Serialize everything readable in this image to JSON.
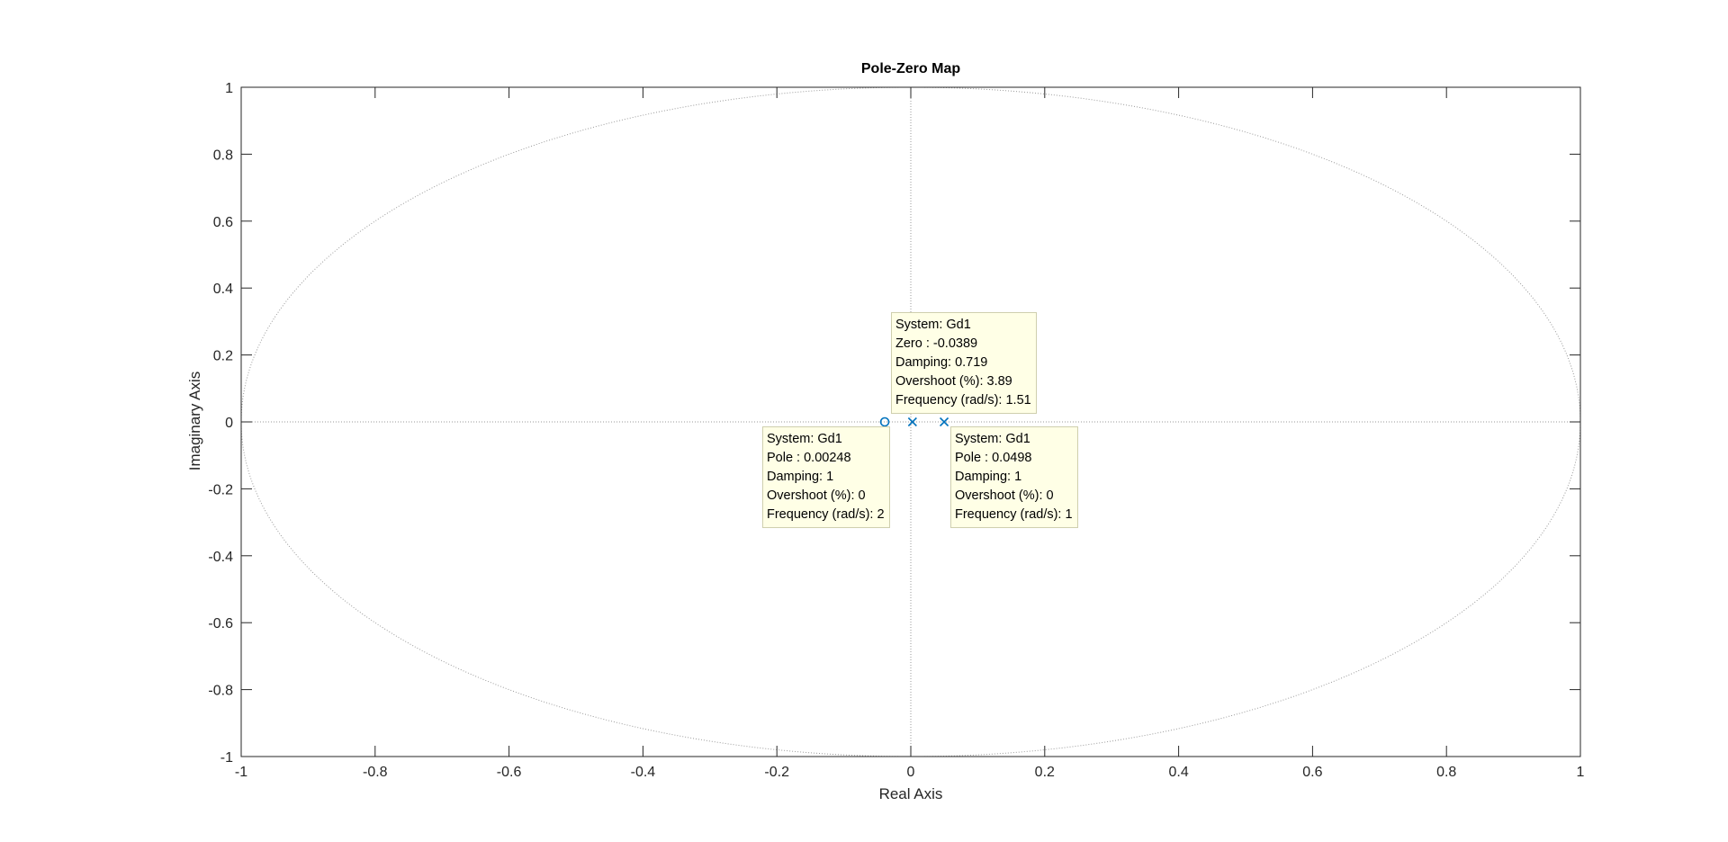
{
  "chart_data": {
    "type": "scatter",
    "title": "Pole-Zero Map",
    "xlabel": "Real Axis",
    "ylabel": "Imaginary Axis",
    "xlim": [
      -1,
      1
    ],
    "ylim": [
      -1,
      1
    ],
    "xticks": [
      -1,
      -0.8,
      -0.6,
      -0.4,
      -0.2,
      0,
      0.2,
      0.4,
      0.6,
      0.8,
      1
    ],
    "xtick_labels": [
      "-1",
      "-0.8",
      "-0.6",
      "-0.4",
      "-0.2",
      "0",
      "0.2",
      "0.4",
      "0.6",
      "0.8",
      "1"
    ],
    "yticks": [
      1,
      0.8,
      0.6,
      0.4,
      0.2,
      0,
      -0.2,
      -0.4,
      -0.6,
      -0.8,
      -1
    ],
    "ytick_labels": [
      "1",
      "0.8",
      "0.6",
      "0.4",
      "0.2",
      "0",
      "-0.2",
      "-0.4",
      "-0.6",
      "-0.8",
      "-1"
    ],
    "unit_circle": true,
    "grid": false,
    "zeros": [
      {
        "re": -0.0389,
        "im": 0
      }
    ],
    "poles": [
      {
        "re": 0.00248,
        "im": 0
      },
      {
        "re": 0.0498,
        "im": 0
      }
    ],
    "marker_color": "#0072bd",
    "datatips": [
      {
        "id": "zero",
        "lines": [
          "System: Gd1",
          "Zero : -0.0389",
          "Damping: 0.719",
          "Overshoot (%): 3.89",
          "Frequency (rad/s): 1.51"
        ]
      },
      {
        "id": "pole1",
        "lines": [
          "System: Gd1",
          "Pole : 0.00248",
          "Damping: 1",
          "Overshoot (%): 0",
          "Frequency (rad/s): 2"
        ]
      },
      {
        "id": "pole2",
        "lines": [
          "System: Gd1",
          "Pole : 0.0498",
          "Damping: 1",
          "Overshoot (%): 0",
          "Frequency (rad/s): 1"
        ]
      }
    ]
  }
}
